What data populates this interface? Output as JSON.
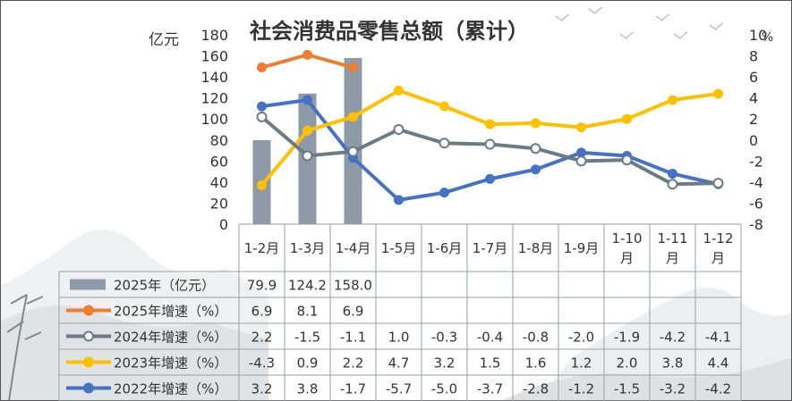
{
  "title": "社会消费品零售总额（累计）",
  "left_unit": "亿元",
  "right_unit": "%",
  "colors": {
    "bar": "#8e9aa8",
    "s2025": "#ed7d31",
    "s2024": "#6b7b86",
    "s2023": "#ffc000",
    "s2022": "#4472c4"
  },
  "chart_data": {
    "type": "bar+line",
    "categories": [
      "1-2月",
      "1-3月",
      "1-4月",
      "1-5月",
      "1-6月",
      "1-7月",
      "1-8月",
      "1-9月",
      "1-10月",
      "1-11月",
      "1-12月"
    ],
    "y_left": {
      "label": "亿元",
      "min": 0,
      "max": 180,
      "step": 20
    },
    "y_right": {
      "label": "%",
      "min": -8,
      "max": 10,
      "step": 2
    },
    "series": [
      {
        "name": "2025年（亿元）",
        "kind": "bar",
        "axis": "left",
        "color": "#8e9aa8",
        "values": [
          79.9,
          124.2,
          158.0,
          null,
          null,
          null,
          null,
          null,
          null,
          null,
          null
        ],
        "labels": [
          "79.9",
          "124.2",
          "158.0",
          "",
          "",
          "",
          "",
          "",
          "",
          "",
          ""
        ]
      },
      {
        "name": "2025年增速（%）",
        "kind": "line",
        "axis": "right",
        "marker": "filled",
        "color": "#ed7d31",
        "values": [
          6.9,
          8.1,
          6.9,
          null,
          null,
          null,
          null,
          null,
          null,
          null,
          null
        ],
        "labels": [
          "6.9",
          "8.1",
          "6.9",
          "",
          "",
          "",
          "",
          "",
          "",
          "",
          ""
        ]
      },
      {
        "name": "2024年增速（%）",
        "kind": "line",
        "axis": "right",
        "marker": "hollow",
        "color": "#6b7b86",
        "values": [
          2.2,
          -1.5,
          -1.1,
          1.0,
          -0.3,
          -0.4,
          -0.8,
          -2.0,
          -1.9,
          -4.2,
          -4.1
        ],
        "labels": [
          "2.2",
          "-1.5",
          "-1.1",
          "1.0",
          "-0.3",
          "-0.4",
          "-0.8",
          "-2.0",
          "-1.9",
          "-4.2",
          "-4.1"
        ]
      },
      {
        "name": "2023年增速（%）",
        "kind": "line",
        "axis": "right",
        "marker": "filled",
        "color": "#ffc000",
        "values": [
          -4.3,
          0.9,
          2.2,
          4.7,
          3.2,
          1.5,
          1.6,
          1.2,
          2.0,
          3.8,
          4.4
        ],
        "labels": [
          "-4.3",
          "0.9",
          "2.2",
          "4.7",
          "3.2",
          "1.5",
          "1.6",
          "1.2",
          "2.0",
          "3.8",
          "4.4"
        ]
      },
      {
        "name": "2022年增速（%）",
        "kind": "line",
        "axis": "right",
        "marker": "filled",
        "color": "#4472c4",
        "values": [
          3.2,
          3.8,
          -1.7,
          -5.7,
          -5.0,
          -3.7,
          -2.8,
          -1.2,
          -1.5,
          -3.2,
          -4.2
        ],
        "labels": [
          "3.2",
          "3.8",
          "-1.7",
          "-5.7",
          "-5.0",
          "-3.7",
          "-2.8",
          "-1.2",
          "-1.5",
          "-3.2",
          "-4.2"
        ]
      }
    ]
  }
}
